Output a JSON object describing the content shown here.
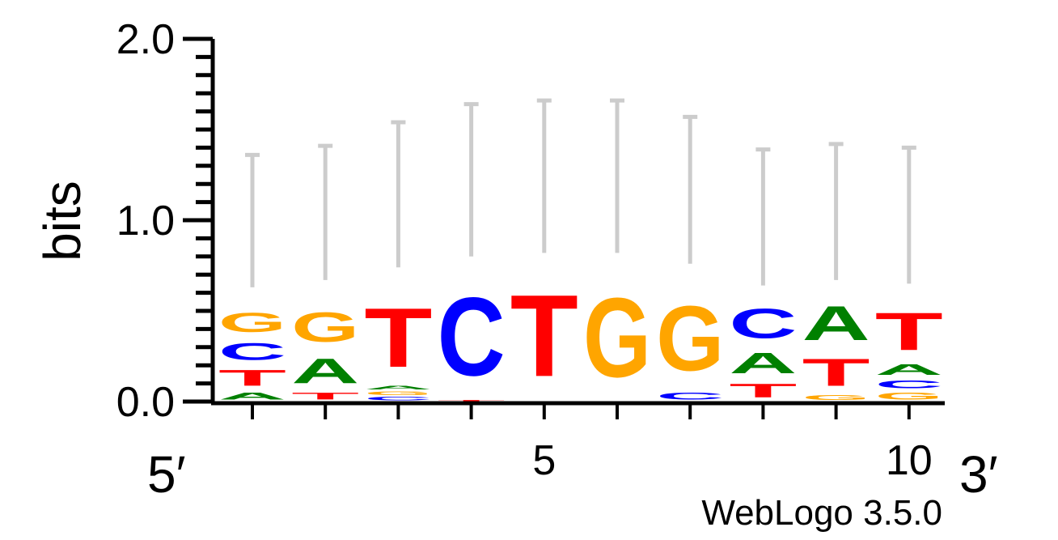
{
  "chart_data": {
    "type": "sequence-logo",
    "ylabel": "bits",
    "ylim": [
      0,
      2.0
    ],
    "y_ticks": [
      "0.0",
      "1.0",
      "2.0"
    ],
    "x_ticks": [
      {
        "position": 5,
        "label": "5"
      },
      {
        "position": 10,
        "label": "10"
      }
    ],
    "end_labels": {
      "left": "5′",
      "right": "3′"
    },
    "footer": "WebLogo 3.5.0",
    "letter_colors": {
      "A": "#008000",
      "C": "#0000ff",
      "G": "#ffa500",
      "T": "#ff0000"
    },
    "error_bar_color": "#cccccc",
    "positions": [
      {
        "position": 1,
        "letters": [
          {
            "base": "A",
            "bits": 0.06
          },
          {
            "base": "T",
            "bits": 0.14
          },
          {
            "base": "C",
            "bits": 0.15
          },
          {
            "base": "G",
            "bits": 0.17
          }
        ],
        "error": [
          0.63,
          1.36
        ]
      },
      {
        "position": 2,
        "letters": [
          {
            "base": "T",
            "bits": 0.06
          },
          {
            "base": "A",
            "bits": 0.22
          },
          {
            "base": "G",
            "bits": 0.26
          }
        ],
        "error": [
          0.67,
          1.41
        ]
      },
      {
        "position": 3,
        "letters": [
          {
            "base": "C",
            "bits": 0.03
          },
          {
            "base": "G",
            "bits": 0.03
          },
          {
            "base": "A",
            "bits": 0.03
          },
          {
            "base": "T",
            "bits": 0.52
          }
        ],
        "error": [
          0.74,
          1.54
        ]
      },
      {
        "position": 4,
        "letters": [
          {
            "base": "T",
            "bits": 0.01
          },
          {
            "base": "C",
            "bits": 0.69
          }
        ],
        "error": [
          0.8,
          1.64
        ]
      },
      {
        "position": 5,
        "letters": [
          {
            "base": "T",
            "bits": 0.72
          }
        ],
        "error": [
          0.82,
          1.66
        ]
      },
      {
        "position": 6,
        "letters": [
          {
            "base": "G",
            "bits": 0.7
          }
        ],
        "error": [
          0.82,
          1.66
        ]
      },
      {
        "position": 7,
        "letters": [
          {
            "base": "C",
            "bits": 0.06
          },
          {
            "base": "G",
            "bits": 0.57
          }
        ],
        "error": [
          0.76,
          1.57
        ]
      },
      {
        "position": 8,
        "letters": [
          {
            "base": "T",
            "bits": 0.12
          },
          {
            "base": "A",
            "bits": 0.18
          },
          {
            "base": "C",
            "bits": 0.26
          }
        ],
        "error": [
          0.64,
          1.39
        ]
      },
      {
        "position": 9,
        "letters": [
          {
            "base": "G",
            "bits": 0.04
          },
          {
            "base": "T",
            "bits": 0.24
          },
          {
            "base": "A",
            "bits": 0.3
          }
        ],
        "error": [
          0.67,
          1.42
        ]
      },
      {
        "position": 10,
        "letters": [
          {
            "base": "G",
            "bits": 0.06
          },
          {
            "base": "C",
            "bits": 0.07
          },
          {
            "base": "A",
            "bits": 0.09
          },
          {
            "base": "T",
            "bits": 0.33
          }
        ],
        "error": [
          0.65,
          1.4
        ]
      }
    ]
  }
}
